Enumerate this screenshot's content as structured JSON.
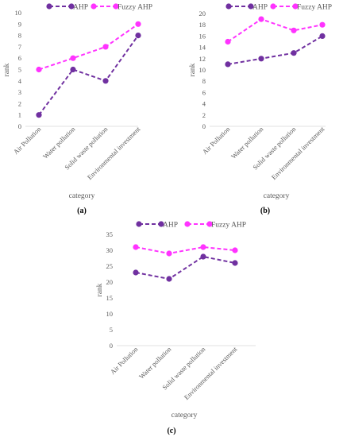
{
  "chart_data": [
    {
      "type": "line",
      "panel_label": "(a)",
      "categories": [
        "Air Pollution",
        "Water pollution",
        "Solid waste pollution",
        "Environmental investment"
      ],
      "xlabel": "category",
      "ylabel": "rank",
      "ylim": [
        0,
        10
      ],
      "yticks": [
        0,
        1,
        2,
        3,
        4,
        5,
        6,
        7,
        8,
        9,
        10
      ],
      "grid": false,
      "legend_position": "top",
      "series": [
        {
          "name": "AHP",
          "values": [
            1,
            5,
            4,
            8
          ],
          "color": "#7030a0",
          "style": "dashed"
        },
        {
          "name": "Fuzzy AHP",
          "values": [
            5,
            6,
            7,
            9
          ],
          "color": "#ff33ff",
          "style": "dashed"
        }
      ]
    },
    {
      "type": "line",
      "panel_label": "(b)",
      "categories": [
        "Air Pollution",
        "Water pollution",
        "Solid waste pollution",
        "Environmental investment"
      ],
      "xlabel": "category",
      "ylabel": "rank",
      "ylim": [
        0,
        20
      ],
      "yticks": [
        0,
        2,
        4,
        6,
        8,
        10,
        12,
        14,
        16,
        18,
        20
      ],
      "grid": false,
      "legend_position": "top",
      "series": [
        {
          "name": "AHP",
          "values": [
            11,
            12,
            13,
            16
          ],
          "color": "#7030a0",
          "style": "dashed"
        },
        {
          "name": "Fuzzy AHP",
          "values": [
            15,
            19,
            17,
            18
          ],
          "color": "#ff33ff",
          "style": "dashed"
        }
      ]
    },
    {
      "type": "line",
      "panel_label": "(c)",
      "categories": [
        "Air Pollution",
        "Water pollution",
        "Solid waste pollution",
        "Environmental investment"
      ],
      "xlabel": "category",
      "ylabel": "rank",
      "ylim": [
        0,
        35
      ],
      "yticks": [
        0,
        5,
        10,
        15,
        20,
        25,
        30,
        35
      ],
      "grid": false,
      "legend_position": "top",
      "series": [
        {
          "name": "AHP",
          "values": [
            23,
            21,
            28,
            26
          ],
          "color": "#7030a0",
          "style": "dashed"
        },
        {
          "name": "Fuzzy AHP",
          "values": [
            31,
            29,
            31,
            30
          ],
          "color": "#ff33ff",
          "style": "dashed"
        }
      ]
    }
  ]
}
